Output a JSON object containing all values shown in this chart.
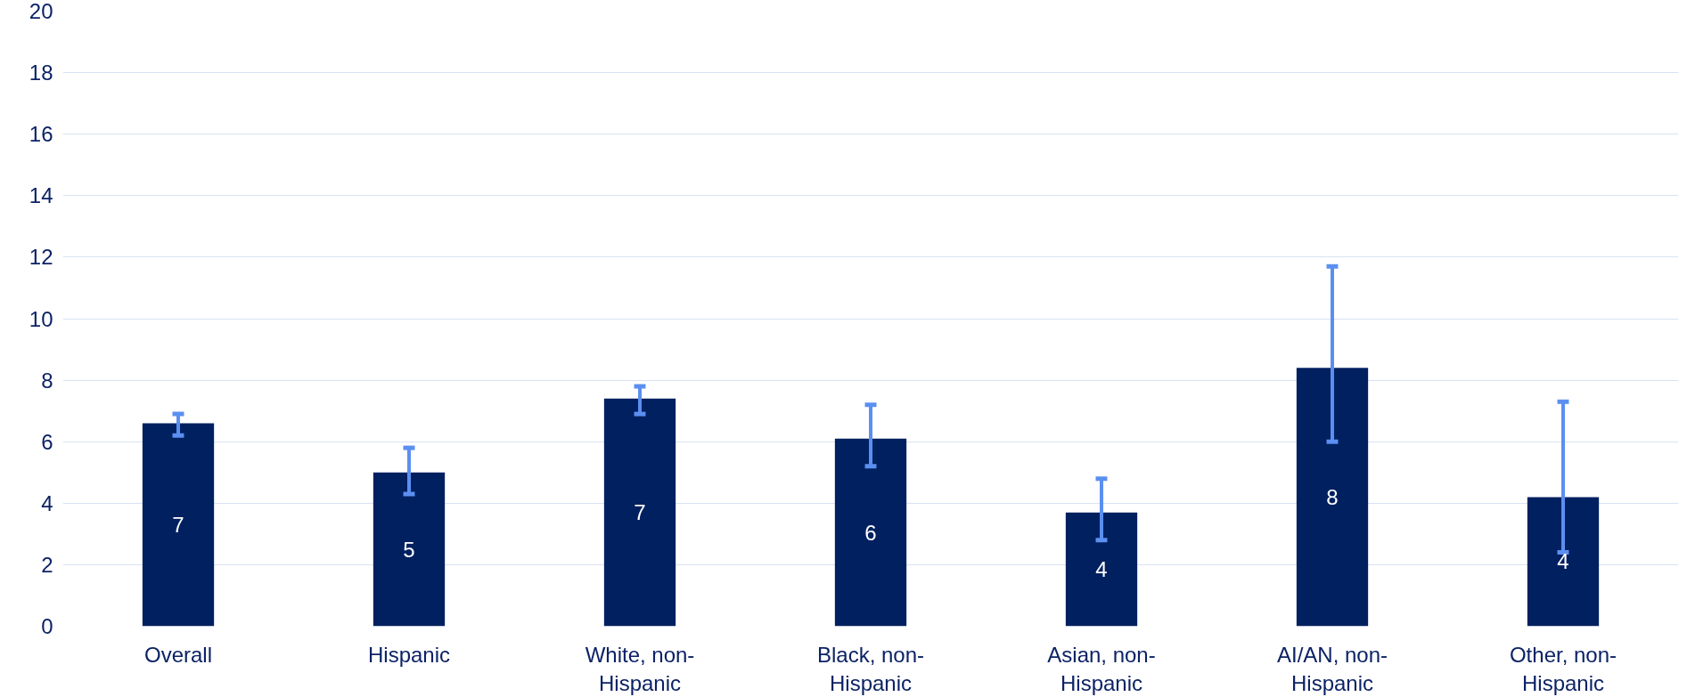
{
  "chart_data": {
    "type": "bar",
    "categories": [
      "Overall",
      "Hispanic",
      "White, non-Hispanic",
      "Black, non-Hispanic",
      "Asian, non-Hispanic",
      "AI/AN, non-Hispanic",
      "Other, non-Hispanic"
    ],
    "values": [
      6.6,
      5.0,
      7.4,
      6.1,
      3.7,
      8.4,
      4.2
    ],
    "errors": [
      [
        6.2,
        6.9
      ],
      [
        4.3,
        5.8
      ],
      [
        6.9,
        7.8
      ],
      [
        5.2,
        7.2
      ],
      [
        2.8,
        4.8
      ],
      [
        6.0,
        11.7
      ],
      [
        2.4,
        7.3
      ]
    ],
    "value_labels": [
      "7",
      "5",
      "7",
      "6",
      "4",
      "8",
      "4"
    ],
    "color": "#002060",
    "ylim": [
      0,
      20
    ],
    "yticks": [
      0,
      2,
      4,
      6,
      8,
      10,
      12,
      14,
      16,
      18,
      20
    ],
    "grid": "y"
  }
}
